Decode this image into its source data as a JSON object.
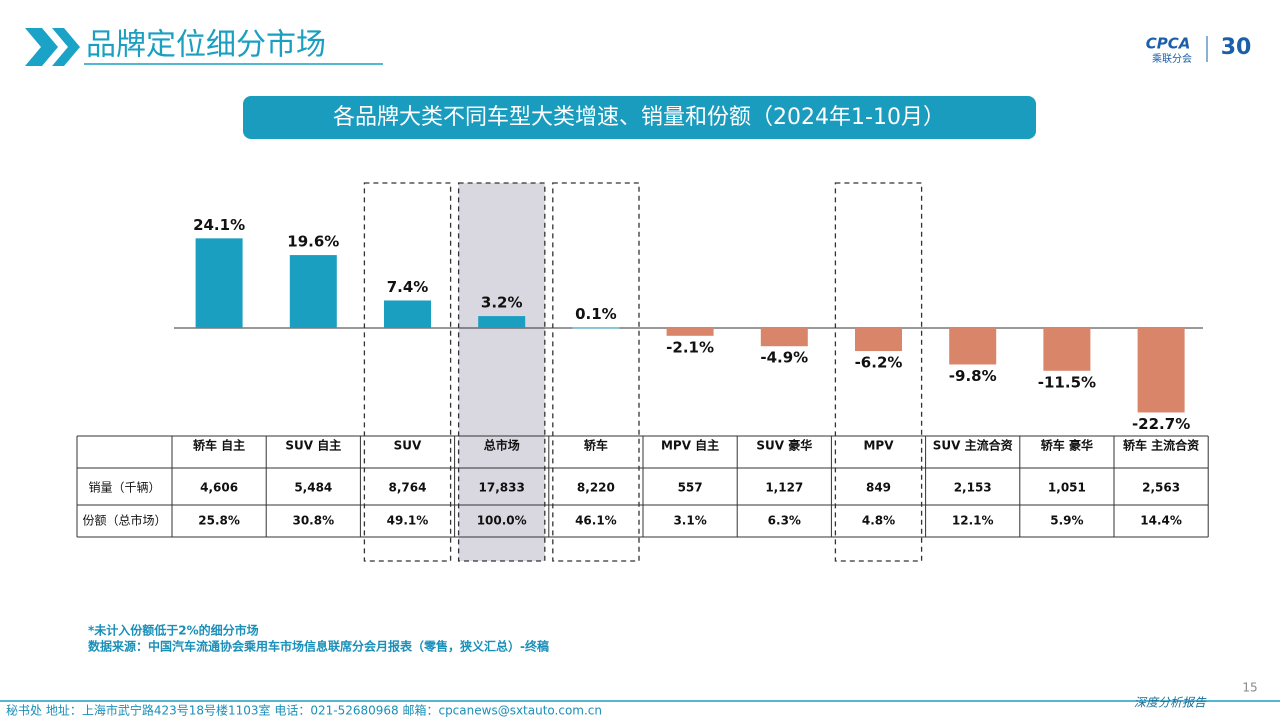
{
  "header": {
    "title": "品牌定位细分市场",
    "logo_text": "CPCA",
    "logo_subtext": "乘联分会",
    "anniversary": "30"
  },
  "chart_data": {
    "type": "bar",
    "title": "各品牌大类不同车型大类增速、销量和份额（2024年1-10月）",
    "categories": [
      "轿车 自主",
      "SUV 自主",
      "SUV",
      "总市场",
      "轿车",
      "MPV 自主",
      "SUV 豪华",
      "MPV",
      "SUV 主流合资",
      "轿车 豪华",
      "轿车 主流合资"
    ],
    "values": [
      24.1,
      19.6,
      7.4,
      3.2,
      0.1,
      -2.1,
      -4.9,
      -6.2,
      -9.8,
      -11.5,
      -22.7
    ],
    "value_labels": [
      "24.1%",
      "19.6%",
      "7.4%",
      "3.2%",
      "0.1%",
      "-2.1%",
      "-4.9%",
      "-6.2%",
      "-9.8%",
      "-11.5%",
      "-22.7%"
    ],
    "positive_color": "#1a9fc0",
    "negative_color": "#d9856a",
    "highlighted": [
      2,
      3,
      4,
      7
    ],
    "shaded": 3
  },
  "table": {
    "rows": [
      {
        "label": "销量（千辆）",
        "values": [
          "4,606",
          "5,484",
          "8,764",
          "17,833",
          "8,220",
          "557",
          "1,127",
          "849",
          "2,153",
          "1,051",
          "2,563"
        ]
      },
      {
        "label": "份额（总市场）",
        "values": [
          "25.8%",
          "30.8%",
          "49.1%",
          "100.0%",
          "46.1%",
          "3.1%",
          "6.3%",
          "4.8%",
          "12.1%",
          "5.9%",
          "14.4%"
        ]
      }
    ]
  },
  "notes": [
    "*未计入份额低于2%的细分市场",
    "数据来源：中国汽车流通协会乘用车市场信息联席分会月报表（零售，狭义汇总）-终稿"
  ],
  "footer": {
    "address": "秘书处  地址：上海市武宁路423号18号楼1103室  电话：021-52680968  邮箱：cpcanews@sxtauto.com.cn",
    "page": "15",
    "tag": "深度分析报告"
  }
}
